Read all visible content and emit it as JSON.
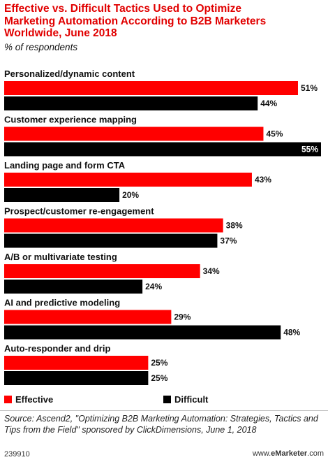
{
  "header": {
    "title": "Effective vs. Difficult Tactics Used to Optimize\nMarketing Automation According to B2B Marketers\nWorldwide, June 2018",
    "subtitle": "% of respondents"
  },
  "colors": {
    "effective": "#ff0000",
    "difficult": "#000000"
  },
  "chart_data": {
    "type": "bar",
    "orientation": "horizontal",
    "categories": [
      "Personalized/dynamic content",
      "Customer experience mapping",
      "Landing page and form CTA",
      "Prospect/customer re-engagement",
      "A/B or multivariate testing",
      "AI and predictive modeling",
      "Auto-responder and drip"
    ],
    "series": [
      {
        "name": "Effective",
        "values": [
          51,
          45,
          43,
          38,
          34,
          29,
          25
        ]
      },
      {
        "name": "Difficult",
        "values": [
          44,
          55,
          20,
          37,
          24,
          48,
          25
        ]
      }
    ],
    "value_suffix": "%",
    "xlim": [
      0,
      55
    ],
    "grid": false,
    "legend": "bottom-left"
  },
  "legend": {
    "effective": "Effective",
    "difficult": "Difficult"
  },
  "footer": {
    "source": "Source: Ascend2, \"Optimizing B2B Marketing Automation: Strategies, Tactics and Tips from the Field\" sponsored by ClickDimensions, June 1, 2018",
    "chart_id": "239910",
    "brand_prefix": "www.",
    "brand_name": "eMarketer",
    "brand_suffix": ".com"
  }
}
